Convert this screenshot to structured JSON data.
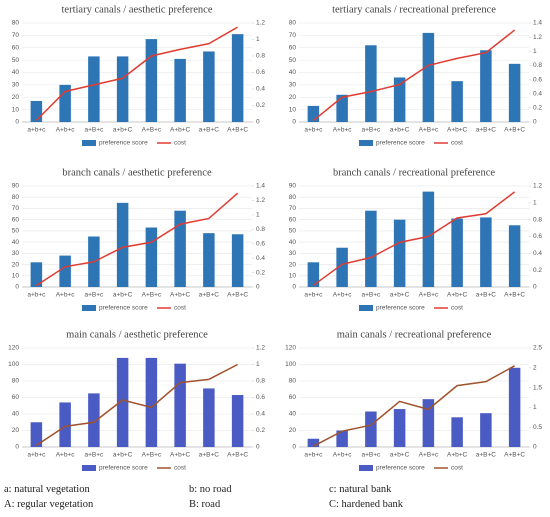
{
  "chart_data": [
    {
      "type": "bar",
      "title": "tertiary canals / aesthetic preference",
      "categories": [
        "a+b+c",
        "A+b+c",
        "a+B+c",
        "a+b+C",
        "A+B+c",
        "A+b+C",
        "a+B+C",
        "A+B+C"
      ],
      "series": [
        {
          "name": "preference score",
          "color": "#2e75b6",
          "values": [
            17,
            30,
            53,
            53,
            67,
            51,
            57,
            71
          ]
        },
        {
          "name": "cost",
          "color": "#e03c31",
          "type": "line",
          "axis": "y2",
          "values": [
            0.02,
            0.37,
            0.45,
            0.53,
            0.8,
            0.88,
            0.95,
            1.15
          ]
        }
      ],
      "ylim": [
        0,
        80
      ],
      "yticks": [
        0,
        10,
        20,
        30,
        40,
        50,
        60,
        70,
        80
      ],
      "y2lim": [
        0,
        1.2
      ],
      "y2ticks": [
        0,
        0.2,
        0.4,
        0.6,
        0.8,
        1,
        1.2
      ],
      "legend": "bottom"
    },
    {
      "type": "bar",
      "title": "tertiary canals / recreational preference",
      "categories": [
        "a+b+c",
        "A+b+c",
        "a+B+c",
        "a+b+C",
        "A+B+c",
        "A+b+C",
        "a+B+C",
        "A+B+C"
      ],
      "series": [
        {
          "name": "preference score",
          "color": "#2e75b6",
          "values": [
            13,
            22,
            62,
            36,
            72,
            33,
            58,
            47
          ]
        },
        {
          "name": "cost",
          "color": "#e03c31",
          "type": "line",
          "axis": "y2",
          "values": [
            0.02,
            0.35,
            0.43,
            0.53,
            0.8,
            0.9,
            0.98,
            1.3
          ]
        }
      ],
      "ylim": [
        0,
        80
      ],
      "yticks": [
        0,
        10,
        20,
        30,
        40,
        50,
        60,
        70,
        80
      ],
      "y2lim": [
        0,
        1.4
      ],
      "y2ticks": [
        0,
        0.2,
        0.4,
        0.6,
        0.8,
        1,
        1.2,
        1.4
      ],
      "legend": "bottom"
    },
    {
      "type": "bar",
      "title": "branch canals / aesthetic preference",
      "categories": [
        "a+b+c",
        "A+b+c",
        "a+B+c",
        "a+b+C",
        "A+B+c",
        "A+b+C",
        "a+B+C",
        "A+B+C"
      ],
      "series": [
        {
          "name": "preference score",
          "color": "#2e75b6",
          "values": [
            22,
            28,
            45,
            75,
            53,
            68,
            48,
            47
          ]
        },
        {
          "name": "cost",
          "color": "#e03c31",
          "type": "line",
          "axis": "y2",
          "values": [
            0.02,
            0.28,
            0.35,
            0.55,
            0.62,
            0.87,
            0.95,
            1.3
          ]
        }
      ],
      "ylim": [
        0,
        90
      ],
      "yticks": [
        0,
        10,
        20,
        30,
        40,
        50,
        60,
        70,
        80,
        90
      ],
      "y2lim": [
        0,
        1.4
      ],
      "y2ticks": [
        0,
        0.2,
        0.4,
        0.6,
        0.8,
        1,
        1.2,
        1.4
      ],
      "legend": "bottom"
    },
    {
      "type": "bar",
      "title": "branch canals / recreational preference",
      "categories": [
        "a+b+c",
        "A+b+c",
        "a+B+c",
        "a+b+C",
        "A+B+c",
        "A+b+C",
        "a+B+C",
        "A+B+C"
      ],
      "series": [
        {
          "name": "preference score",
          "color": "#2e75b6",
          "values": [
            22,
            35,
            68,
            60,
            85,
            61,
            62,
            55
          ]
        },
        {
          "name": "cost",
          "color": "#e03c31",
          "type": "line",
          "axis": "y2",
          "values": [
            0.02,
            0.27,
            0.35,
            0.53,
            0.6,
            0.82,
            0.87,
            1.13
          ]
        }
      ],
      "ylim": [
        0,
        90
      ],
      "yticks": [
        0,
        10,
        20,
        30,
        40,
        50,
        60,
        70,
        80,
        90
      ],
      "y2lim": [
        0,
        1.2
      ],
      "y2ticks": [
        0,
        0.2,
        0.4,
        0.6,
        0.8,
        1,
        1.2
      ],
      "legend": "bottom"
    },
    {
      "type": "bar",
      "title": "main canals / aesthetic preference",
      "categories": [
        "a+b+c",
        "A+b+c",
        "a+B+c",
        "a+b+C",
        "A+B+c",
        "A+b+C",
        "a+B+C",
        "A+B+C"
      ],
      "series": [
        {
          "name": "preference score",
          "color": "#4a5cc4",
          "values": [
            30,
            54,
            65,
            108,
            108,
            101,
            71,
            63
          ]
        },
        {
          "name": "cost",
          "color": "#a0522d",
          "type": "line",
          "axis": "y2",
          "values": [
            0.02,
            0.25,
            0.3,
            0.57,
            0.48,
            0.78,
            0.82,
            1
          ]
        }
      ],
      "ylim": [
        0,
        120
      ],
      "yticks": [
        0,
        20,
        40,
        60,
        80,
        100,
        120
      ],
      "y2lim": [
        0,
        1.2
      ],
      "y2ticks": [
        0,
        0.2,
        0.4,
        0.6,
        0.8,
        1,
        1.2
      ],
      "legend": "bottom"
    },
    {
      "type": "bar",
      "title": "main canals / recreational preference",
      "categories": [
        "a+b+c",
        "A+b+c",
        "a+B+c",
        "a+b+C",
        "A+B+c",
        "A+b+C",
        "a+B+C",
        "A+B+C"
      ],
      "series": [
        {
          "name": "preference score",
          "color": "#4a5cc4",
          "values": [
            10,
            20,
            43,
            46,
            58,
            36,
            41,
            96
          ]
        },
        {
          "name": "cost",
          "color": "#a0522d",
          "type": "line",
          "axis": "y2",
          "values": [
            0.02,
            0.4,
            0.55,
            1.15,
            0.95,
            1.55,
            1.65,
            2.05
          ]
        }
      ],
      "ylim": [
        0,
        120
      ],
      "yticks": [
        0,
        20,
        40,
        60,
        80,
        100,
        120
      ],
      "y2lim": [
        0,
        2.5
      ],
      "y2ticks": [
        0,
        0.5,
        1,
        1.5,
        2,
        2.5
      ],
      "legend": "bottom"
    }
  ],
  "key": [
    "a: natural vegetation",
    "b: no road",
    "c: natural bank",
    "A: regular vegetation",
    "B: road",
    "C: hardened bank"
  ]
}
